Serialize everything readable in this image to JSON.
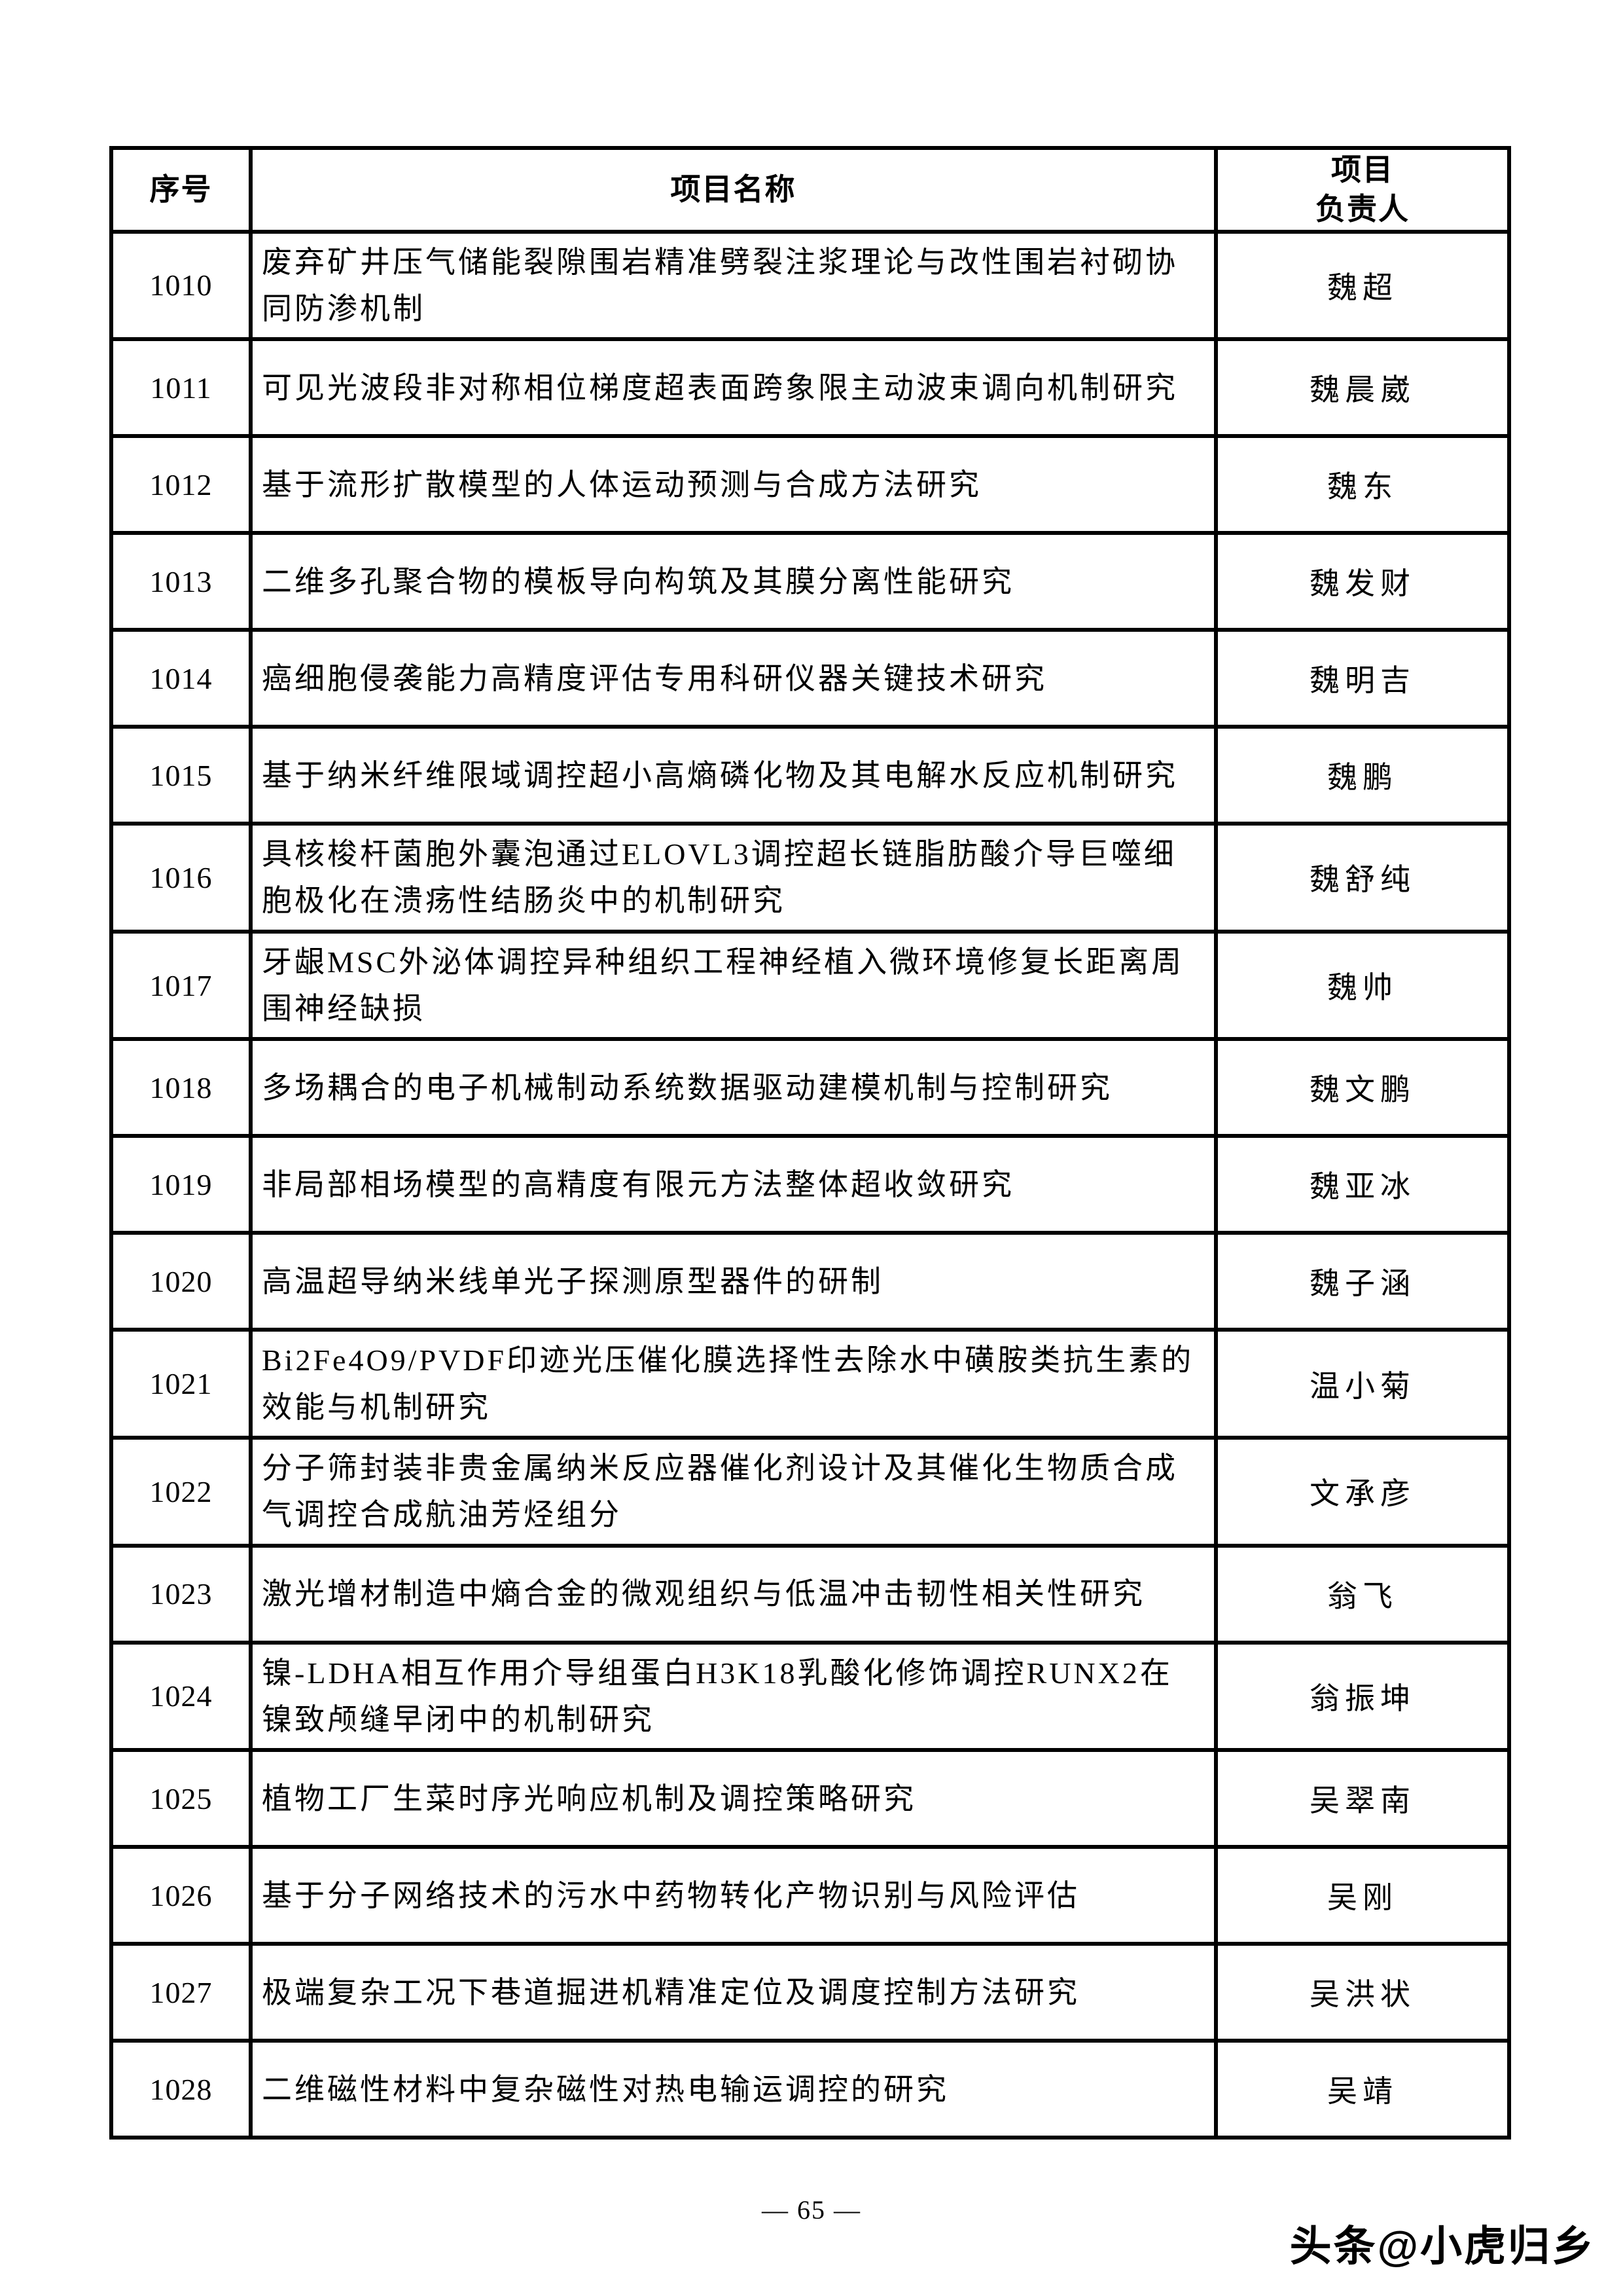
{
  "table": {
    "headers": [
      "序号",
      "项目名称",
      "项目\n负责人"
    ],
    "rows": [
      {
        "no": "1010",
        "title": "废弃矿井压气储能裂隙围岩精准劈裂注浆理论与改性围岩衬砌协同防渗机制",
        "leader": "魏超"
      },
      {
        "no": "1011",
        "title": "可见光波段非对称相位梯度超表面跨象限主动波束调向机制研究",
        "leader": "魏晨崴"
      },
      {
        "no": "1012",
        "title": "基于流形扩散模型的人体运动预测与合成方法研究",
        "leader": "魏东"
      },
      {
        "no": "1013",
        "title": "二维多孔聚合物的模板导向构筑及其膜分离性能研究",
        "leader": "魏发财"
      },
      {
        "no": "1014",
        "title": "癌细胞侵袭能力高精度评估专用科研仪器关键技术研究",
        "leader": "魏明吉"
      },
      {
        "no": "1015",
        "title": "基于纳米纤维限域调控超小高熵磷化物及其电解水反应机制研究",
        "leader": "魏鹏"
      },
      {
        "no": "1016",
        "title": "具核梭杆菌胞外囊泡通过ELOVL3调控超长链脂肪酸介导巨噬细胞极化在溃疡性结肠炎中的机制研究",
        "leader": "魏舒纯"
      },
      {
        "no": "1017",
        "title": "牙龈MSC外泌体调控异种组织工程神经植入微环境修复长距离周围神经缺损",
        "leader": "魏帅"
      },
      {
        "no": "1018",
        "title": "多场耦合的电子机械制动系统数据驱动建模机制与控制研究",
        "leader": "魏文鹏"
      },
      {
        "no": "1019",
        "title": "非局部相场模型的高精度有限元方法整体超收敛研究",
        "leader": "魏亚冰"
      },
      {
        "no": "1020",
        "title": "高温超导纳米线单光子探测原型器件的研制",
        "leader": "魏子涵"
      },
      {
        "no": "1021",
        "title": "Bi2Fe4O9/PVDF印迹光压催化膜选择性去除水中磺胺类抗生素的效能与机制研究",
        "leader": "温小菊"
      },
      {
        "no": "1022",
        "title": "分子筛封装非贵金属纳米反应器催化剂设计及其催化生物质合成气调控合成航油芳烃组分",
        "leader": "文承彦"
      },
      {
        "no": "1023",
        "title": "激光增材制造中熵合金的微观组织与低温冲击韧性相关性研究",
        "leader": "翁飞"
      },
      {
        "no": "1024",
        "title": "镍-LDHA相互作用介导组蛋白H3K18乳酸化修饰调控RUNX2在镍致颅缝早闭中的机制研究",
        "leader": "翁振坤"
      },
      {
        "no": "1025",
        "title": "植物工厂生菜时序光响应机制及调控策略研究",
        "leader": "吴翠南"
      },
      {
        "no": "1026",
        "title": "基于分子网络技术的污水中药物转化产物识别与风险评估",
        "leader": "吴刚"
      },
      {
        "no": "1027",
        "title": "极端复杂工况下巷道掘进机精准定位及调度控制方法研究",
        "leader": "吴洪状"
      },
      {
        "no": "1028",
        "title": "二维磁性材料中复杂磁性对热电输运调控的研究",
        "leader": "吴靖"
      }
    ]
  },
  "footer": {
    "page_number": "— 65 —"
  },
  "watermark": "头条@小虎归乡",
  "colors": {
    "border": "#000000",
    "text": "#000000",
    "background": "#ffffff"
  }
}
